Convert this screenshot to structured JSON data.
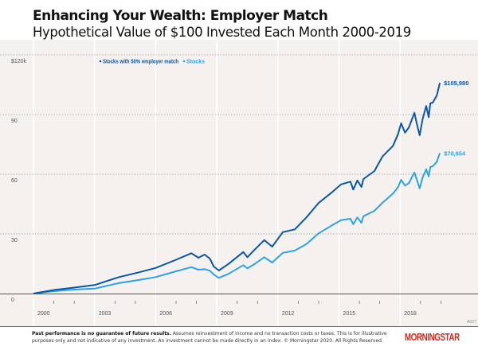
{
  "header": {
    "title": "Enhancing Your Wealth: Employer Match",
    "subtitle": "Hypothetical Value of $100 Invested Each Month 2000-2019"
  },
  "chart_data": {
    "type": "line",
    "title": "Enhancing Your Wealth: Employer Match",
    "subtitle": "Hypothetical Value of $100 Invested Each Month 2000-2019",
    "xlabel": "",
    "ylabel": "",
    "xlim": [
      2000,
      2020
    ],
    "ylim": [
      0,
      120000
    ],
    "x_ticks": [
      "2000",
      "2003",
      "2006",
      "2009",
      "2012",
      "2015",
      "2018"
    ],
    "y_ticks": [
      "0",
      "30",
      "60",
      "90",
      "$120k"
    ],
    "y_tick_values": [
      0,
      30000,
      60000,
      90000,
      120000
    ],
    "grid": true,
    "legend_position": "top",
    "series": [
      {
        "name": "Stocks with 50% employer match",
        "color": "#0b57a4",
        "end_label": "$105,980",
        "x": [
          2000.0,
          2001.0,
          2002.0,
          2003.0,
          2004.2,
          2005.1,
          2006.0,
          2007.0,
          2007.75,
          2008.1,
          2008.4,
          2008.66,
          2008.85,
          2009.1,
          2009.57,
          2010.3,
          2010.5,
          2010.8,
          2011.33,
          2011.72,
          2012.24,
          2012.83,
          2013.4,
          2014.0,
          2014.65,
          2015.1,
          2015.56,
          2015.7,
          2015.9,
          2016.1,
          2016.2,
          2016.74,
          2017.13,
          2017.65,
          2017.9,
          2018.05,
          2018.24,
          2018.43,
          2018.7,
          2018.83,
          2018.96,
          2019.1,
          2019.28,
          2019.4,
          2019.48,
          2019.6,
          2019.8,
          2019.95
        ],
        "values": [
          0,
          1800,
          3000,
          4300,
          8300,
          10500,
          12900,
          17000,
          20300,
          18000,
          19600,
          17600,
          13600,
          11600,
          14900,
          20900,
          18300,
          21500,
          26900,
          23600,
          30900,
          32300,
          38300,
          45600,
          50900,
          54900,
          56300,
          52300,
          56900,
          53600,
          57600,
          61600,
          68900,
          74300,
          80300,
          85600,
          80900,
          83600,
          90900,
          84900,
          79600,
          87600,
          94300,
          88700,
          95600,
          96000,
          99600,
          105980
        ]
      },
      {
        "name": "Stocks",
        "color": "#2ea3e0",
        "end_label": "$70,654",
        "x": [
          2000.0,
          2001.0,
          2002.0,
          2003.0,
          2004.2,
          2005.1,
          2006.0,
          2007.0,
          2007.75,
          2008.1,
          2008.4,
          2008.66,
          2008.85,
          2009.1,
          2009.57,
          2010.3,
          2010.5,
          2010.8,
          2011.33,
          2011.72,
          2012.24,
          2012.83,
          2013.4,
          2014.0,
          2014.65,
          2015.1,
          2015.56,
          2015.7,
          2015.9,
          2016.1,
          2016.2,
          2016.74,
          2017.13,
          2017.65,
          2017.9,
          2018.05,
          2018.24,
          2018.43,
          2018.7,
          2018.83,
          2018.96,
          2019.1,
          2019.28,
          2019.4,
          2019.48,
          2019.6,
          2019.8,
          2019.95
        ],
        "values": [
          0,
          1200,
          2000,
          2500,
          5300,
          6700,
          8300,
          11200,
          13300,
          12000,
          12300,
          11500,
          9600,
          7900,
          9900,
          14300,
          12700,
          14500,
          18300,
          15600,
          20500,
          21600,
          24900,
          30300,
          34300,
          36900,
          37600,
          34900,
          38300,
          35600,
          38900,
          41600,
          45600,
          50300,
          53600,
          57200,
          54300,
          55600,
          60900,
          56900,
          52900,
          58300,
          62500,
          58900,
          63600,
          64000,
          66300,
          70654
        ]
      }
    ],
    "annotations": [
      "A027"
    ]
  },
  "footer": {
    "disclaimer_bold": "Past performance is no guarantee of future results.",
    "disclaimer": " Assumes reinvestment of income and no transaction costs or taxes. This is for illustrative purposes only and not indicative of any investment.  An investment cannot be made directly in an index. © Morningstar 2020. All Rights Reserved.",
    "logo_text": "MORNINGSTAR",
    "logo_color": "#e2231a"
  }
}
